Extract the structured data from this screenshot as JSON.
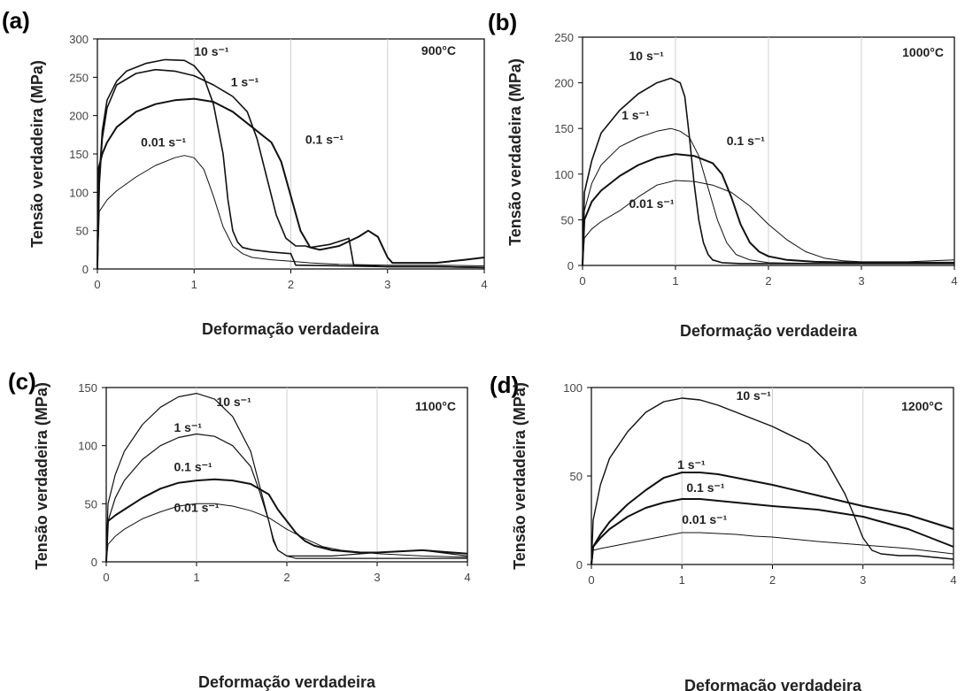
{
  "chart_data": [
    {
      "type": "line",
      "panel": "(a)",
      "temperature": "900°C",
      "xlabel": "Deformação verdadeira",
      "ylabel": "Tensão verdadeira (MPa)",
      "xlim": [
        0,
        4
      ],
      "ylim": [
        0,
        300
      ],
      "xticks": [
        0,
        1,
        2,
        3,
        4
      ],
      "yticks": [
        0,
        50,
        100,
        150,
        200,
        250,
        300
      ],
      "grid": "vertical",
      "series": [
        {
          "name": "10 s⁻¹",
          "label_at": [
            1.0,
            278
          ],
          "x": [
            0,
            0.02,
            0.05,
            0.1,
            0.2,
            0.3,
            0.5,
            0.7,
            0.9,
            1.0,
            1.1,
            1.2,
            1.3,
            1.35,
            1.4,
            1.45,
            1.5,
            1.6,
            1.8,
            2.0,
            2.05,
            2.5,
            3.0,
            3.5,
            4.0
          ],
          "y": [
            0,
            120,
            180,
            220,
            245,
            258,
            268,
            273,
            272,
            265,
            250,
            215,
            150,
            90,
            50,
            35,
            28,
            25,
            22,
            20,
            5,
            4,
            3,
            3,
            2
          ]
        },
        {
          "name": "1 s⁻¹",
          "label_at": [
            1.38,
            238
          ],
          "x": [
            0,
            0.02,
            0.05,
            0.1,
            0.2,
            0.4,
            0.6,
            0.8,
            1.0,
            1.2,
            1.4,
            1.55,
            1.65,
            1.75,
            1.85,
            1.95,
            2.05,
            2.15,
            2.2,
            2.4,
            2.55,
            2.6,
            2.65,
            3.0,
            3.5,
            4.0
          ],
          "y": [
            0,
            110,
            170,
            210,
            240,
            255,
            260,
            258,
            252,
            240,
            225,
            205,
            170,
            120,
            70,
            40,
            30,
            30,
            28,
            32,
            38,
            40,
            5,
            3,
            3,
            2
          ]
        },
        {
          "name": "0.1 s⁻¹",
          "label_at": [
            2.15,
            163
          ],
          "x": [
            0,
            0.01,
            0.05,
            0.1,
            0.2,
            0.4,
            0.6,
            0.8,
            1.0,
            1.2,
            1.4,
            1.6,
            1.8,
            1.9,
            2.0,
            2.1,
            2.2,
            2.3,
            2.5,
            2.7,
            2.8,
            2.9,
            3.0,
            3.05,
            3.2,
            3.5,
            3.8,
            4.0
          ],
          "y": [
            0,
            130,
            150,
            165,
            185,
            205,
            215,
            220,
            222,
            218,
            205,
            185,
            165,
            140,
            95,
            50,
            28,
            25,
            30,
            42,
            50,
            42,
            15,
            8,
            8,
            8,
            12,
            15
          ]
        },
        {
          "name": "0.01 s⁻¹",
          "label_at": [
            0.45,
            160
          ],
          "x": [
            0,
            0.02,
            0.1,
            0.2,
            0.4,
            0.6,
            0.8,
            0.9,
            1.0,
            1.1,
            1.2,
            1.3,
            1.4,
            1.5,
            1.6,
            1.8,
            2.0,
            2.2,
            2.5,
            3.0,
            3.5,
            4.0
          ],
          "y": [
            0,
            75,
            90,
            102,
            120,
            135,
            145,
            148,
            145,
            130,
            95,
            55,
            30,
            20,
            15,
            12,
            10,
            8,
            6,
            5,
            5,
            4
          ]
        }
      ]
    },
    {
      "type": "line",
      "panel": "(b)",
      "temperature": "1000°C",
      "xlabel": "Deformação verdadeira",
      "ylabel": "Tensão verdadeira (MPa)",
      "xlim": [
        0,
        4
      ],
      "ylim": [
        0,
        250
      ],
      "xticks": [
        0,
        1,
        2,
        3,
        4
      ],
      "yticks": [
        0,
        50,
        100,
        150,
        200,
        250
      ],
      "grid": "vertical",
      "series": [
        {
          "name": "10 s⁻¹",
          "label_at": [
            0.5,
            225
          ],
          "x": [
            0,
            0.02,
            0.1,
            0.2,
            0.4,
            0.6,
            0.8,
            0.95,
            1.05,
            1.1,
            1.15,
            1.2,
            1.25,
            1.3,
            1.35,
            1.4,
            1.5,
            1.7,
            2.0,
            2.5,
            3.0,
            4.0
          ],
          "y": [
            0,
            80,
            115,
            145,
            170,
            188,
            200,
            205,
            200,
            185,
            140,
            90,
            50,
            25,
            12,
            6,
            3,
            2,
            2,
            2,
            2,
            2
          ]
        },
        {
          "name": "1 s⁻¹",
          "label_at": [
            0.42,
            160
          ],
          "x": [
            0,
            0.02,
            0.1,
            0.2,
            0.4,
            0.6,
            0.8,
            0.95,
            1.05,
            1.15,
            1.25,
            1.35,
            1.45,
            1.55,
            1.65,
            1.8,
            2.0,
            2.5,
            3.0,
            4.0
          ],
          "y": [
            0,
            60,
            90,
            110,
            130,
            140,
            147,
            150,
            147,
            140,
            120,
            85,
            50,
            25,
            12,
            6,
            3,
            2,
            2,
            2
          ]
        },
        {
          "name": "0.1 s⁻¹",
          "label_at": [
            1.55,
            132
          ],
          "x": [
            0,
            0.02,
            0.1,
            0.2,
            0.4,
            0.6,
            0.8,
            1.0,
            1.2,
            1.4,
            1.5,
            1.6,
            1.7,
            1.8,
            1.9,
            2.0,
            2.2,
            2.5,
            3.0,
            3.5,
            4.0
          ],
          "y": [
            0,
            50,
            70,
            82,
            98,
            110,
            118,
            122,
            120,
            112,
            100,
            75,
            45,
            25,
            15,
            10,
            6,
            4,
            3,
            3,
            3
          ]
        },
        {
          "name": "0.01 s⁻¹",
          "label_at": [
            0.5,
            63
          ],
          "x": [
            0,
            0.02,
            0.1,
            0.2,
            0.4,
            0.6,
            0.8,
            1.0,
            1.2,
            1.4,
            1.6,
            1.8,
            2.0,
            2.2,
            2.4,
            2.6,
            2.8,
            3.0,
            3.5,
            4.0
          ],
          "y": [
            0,
            30,
            40,
            48,
            60,
            75,
            88,
            93,
            92,
            88,
            80,
            65,
            45,
            28,
            15,
            8,
            5,
            4,
            4,
            6
          ]
        }
      ]
    },
    {
      "type": "line",
      "panel": "(c)",
      "temperature": "1100°C",
      "xlabel": "Deformação verdadeira",
      "ylabel": "Tensão verdadeira (MPa)",
      "xlim": [
        0,
        4
      ],
      "ylim": [
        0,
        150
      ],
      "xticks": [
        0,
        1,
        2,
        3,
        4
      ],
      "yticks": [
        0,
        50,
        100,
        150
      ],
      "grid": "vertical",
      "series": [
        {
          "name": "10 s⁻¹",
          "label_at": [
            1.22,
            134
          ],
          "x": [
            0,
            0.02,
            0.1,
            0.2,
            0.4,
            0.6,
            0.8,
            1.0,
            1.2,
            1.4,
            1.6,
            1.7,
            1.8,
            1.85,
            1.9,
            2.0,
            2.1,
            2.3,
            2.5,
            3.0,
            3.5,
            4.0
          ],
          "y": [
            0,
            50,
            75,
            95,
            118,
            133,
            142,
            145,
            140,
            125,
            95,
            65,
            35,
            20,
            10,
            5,
            3,
            3,
            3,
            3,
            3,
            3
          ]
        },
        {
          "name": "1 s⁻¹",
          "label_at": [
            0.75,
            112
          ],
          "x": [
            0,
            0.02,
            0.1,
            0.2,
            0.4,
            0.6,
            0.8,
            1.0,
            1.2,
            1.4,
            1.6,
            1.7,
            1.8,
            1.85,
            1.9,
            2.0,
            2.2,
            2.5,
            3.0,
            3.5,
            4.0
          ],
          "y": [
            0,
            35,
            55,
            70,
            88,
            100,
            107,
            110,
            108,
            100,
            82,
            60,
            35,
            18,
            10,
            5,
            5,
            5,
            8,
            10,
            5
          ]
        },
        {
          "name": "0.1 s⁻¹",
          "label_at": [
            0.75,
            78
          ],
          "x": [
            0,
            0.02,
            0.1,
            0.2,
            0.4,
            0.6,
            0.8,
            1.0,
            1.2,
            1.4,
            1.6,
            1.8,
            1.9,
            2.0,
            2.1,
            2.2,
            2.3,
            2.5,
            2.8,
            3.0,
            3.5,
            4.0
          ],
          "y": [
            0,
            35,
            40,
            45,
            55,
            63,
            68,
            70,
            71,
            70,
            67,
            58,
            45,
            35,
            25,
            18,
            14,
            10,
            8,
            8,
            10,
            7
          ]
        },
        {
          "name": "0.01 s⁻¹",
          "label_at": [
            0.75,
            43
          ],
          "x": [
            0,
            0.02,
            0.1,
            0.2,
            0.4,
            0.6,
            0.8,
            1.0,
            1.2,
            1.4,
            1.6,
            1.8,
            2.0,
            2.2,
            2.4,
            2.6,
            3.0,
            3.5,
            4.0
          ],
          "y": [
            0,
            15,
            22,
            28,
            37,
            43,
            48,
            50,
            50,
            48,
            44,
            38,
            28,
            20,
            13,
            10,
            7,
            5,
            4
          ]
        }
      ]
    },
    {
      "type": "line",
      "panel": "(d)",
      "temperature": "1200°C",
      "xlabel": "Deformação verdadeira",
      "ylabel": "Tensão verdadeira (MPa)",
      "xlim": [
        0,
        4
      ],
      "ylim": [
        0,
        100
      ],
      "xticks": [
        0,
        1,
        2,
        3,
        4
      ],
      "yticks": [
        0,
        50,
        100
      ],
      "grid": "vertical",
      "series": [
        {
          "name": "10 s⁻¹",
          "label_at": [
            1.6,
            93
          ],
          "x": [
            0,
            0.02,
            0.1,
            0.2,
            0.4,
            0.6,
            0.8,
            1.0,
            1.2,
            1.4,
            1.6,
            1.8,
            2.0,
            2.2,
            2.4,
            2.6,
            2.8,
            2.9,
            3.0,
            3.1,
            3.2,
            3.4,
            3.6,
            3.8,
            4.0
          ],
          "y": [
            0,
            25,
            45,
            60,
            75,
            86,
            92,
            94,
            93,
            90,
            86,
            82,
            78,
            73,
            68,
            58,
            40,
            28,
            15,
            8,
            6,
            5,
            5,
            4,
            3
          ]
        },
        {
          "name": "1 s⁻¹",
          "label_at": [
            0.95,
            54
          ],
          "x": [
            0,
            0.02,
            0.1,
            0.2,
            0.4,
            0.6,
            0.8,
            1.0,
            1.2,
            1.4,
            1.6,
            1.8,
            2.0,
            2.5,
            3.0,
            3.5,
            4.0
          ],
          "y": [
            0,
            10,
            17,
            24,
            34,
            42,
            49,
            52,
            52,
            51,
            49,
            47,
            45,
            39,
            33,
            28,
            20
          ]
        },
        {
          "name": "0.1 s⁻¹",
          "label_at": [
            1.05,
            41
          ],
          "x": [
            0,
            0.02,
            0.1,
            0.2,
            0.4,
            0.6,
            0.8,
            1.0,
            1.2,
            1.4,
            1.6,
            1.8,
            2.0,
            2.5,
            3.0,
            3.5,
            4.0
          ],
          "y": [
            0,
            10,
            15,
            20,
            27,
            32,
            35,
            37,
            37,
            36,
            35,
            34,
            33,
            31,
            27,
            20,
            10
          ]
        },
        {
          "name": "0.01 s⁻¹",
          "label_at": [
            1.0,
            23
          ],
          "x": [
            0,
            0.02,
            0.1,
            0.2,
            0.4,
            0.6,
            0.8,
            1.0,
            1.2,
            1.4,
            1.6,
            1.8,
            2.0,
            2.5,
            3.0,
            3.5,
            4.0
          ],
          "y": [
            0,
            8,
            9,
            10,
            12,
            14,
            16,
            18,
            18,
            17.5,
            17,
            16,
            15.5,
            13,
            11,
            9,
            6
          ]
        }
      ]
    }
  ]
}
